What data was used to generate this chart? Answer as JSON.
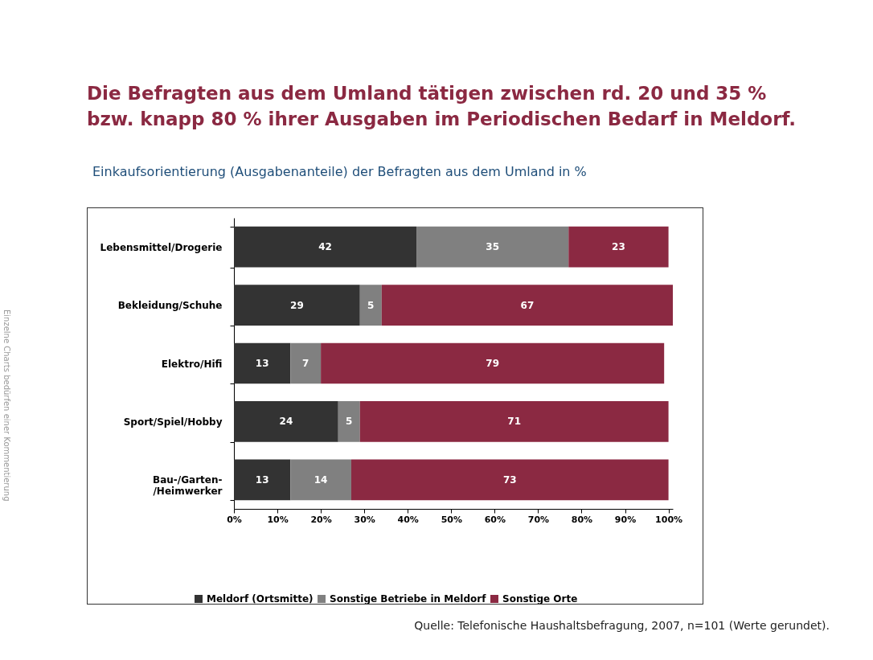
{
  "chart_data": {
    "type": "bar",
    "orientation": "horizontal",
    "stacked": true,
    "title": "Die Befragten aus dem Umland tätigen zwischen rd. 20 und 35 %\nbzw. knapp 80 % ihrer Ausgaben im Periodischen Bedarf in Meldorf.",
    "subtitle": "Einkaufsorientierung (Ausgabenanteile) der Befragten aus dem Umland in %",
    "categories": [
      "Lebensmittel/Drogerie",
      "Bekleidung/Schuhe",
      "Elektro/Hifi",
      "Sport/Spiel/Hobby",
      "Bau-/Garten-\n/Heimwerker"
    ],
    "series": [
      {
        "name": "Meldorf (Ortsmitte)",
        "color": "#333333",
        "values": [
          42,
          29,
          13,
          24,
          13
        ]
      },
      {
        "name": "Sonstige Betriebe in Meldorf",
        "color": "#808080",
        "values": [
          35,
          5,
          7,
          5,
          14
        ]
      },
      {
        "name": "Sonstige Orte",
        "color": "#8b2942",
        "values": [
          23,
          67,
          79,
          71,
          73
        ]
      }
    ],
    "xlim": [
      0,
      101
    ],
    "xticks": [
      {
        "value": 0,
        "label": "0%"
      },
      {
        "value": 10,
        "label": "10%"
      },
      {
        "value": 20,
        "label": "20%"
      },
      {
        "value": 30,
        "label": "30%"
      },
      {
        "value": 40,
        "label": "40%"
      },
      {
        "value": 50,
        "label": "50%"
      },
      {
        "value": 60,
        "label": "60%"
      },
      {
        "value": 70,
        "label": "70%"
      },
      {
        "value": 80,
        "label": "80%"
      },
      {
        "value": 90,
        "label": "90%"
      },
      {
        "value": 100,
        "label": "100%"
      }
    ],
    "data_labels": true,
    "legend": "bottom",
    "grid": false,
    "annotations": [
      "Quelle: Telefonische Haushaltsbefragung, 2007, n=101 (Werte gerundet).",
      "Einzelne Charts bedürfen einer Kommentierung"
    ]
  }
}
